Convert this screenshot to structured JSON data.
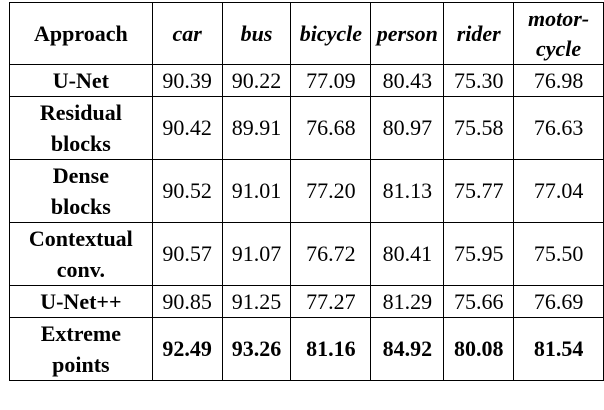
{
  "table": {
    "header": {
      "approach": "Approach",
      "columns": [
        "car",
        "bus",
        "bicycle",
        "person",
        "rider"
      ],
      "last_column_line1": "motor-",
      "last_column_line2": "cycle"
    },
    "rows": [
      {
        "label_line1": "U-Net",
        "label_line2": "",
        "values": [
          "90.39",
          "90.22",
          "77.09",
          "80.43",
          "75.30",
          "76.98"
        ],
        "bold": false
      },
      {
        "label_line1": "Residual",
        "label_line2": "blocks",
        "values": [
          "90.42",
          "89.91",
          "76.68",
          "80.97",
          "75.58",
          "76.63"
        ],
        "bold": false
      },
      {
        "label_line1": "Dense",
        "label_line2": "blocks",
        "values": [
          "90.52",
          "91.01",
          "77.20",
          "81.13",
          "75.77",
          "77.04"
        ],
        "bold": false
      },
      {
        "label_line1": "Contextual",
        "label_line2": "conv.",
        "values": [
          "90.57",
          "91.07",
          "76.72",
          "80.41",
          "75.95",
          "75.50"
        ],
        "bold": false
      },
      {
        "label_line1": "U-Net++",
        "label_line2": "",
        "values": [
          "90.85",
          "91.25",
          "77.27",
          "81.29",
          "75.66",
          "76.69"
        ],
        "bold": false
      },
      {
        "label_line1": "Extreme",
        "label_line2": "points",
        "values": [
          "92.49",
          "93.26",
          "81.16",
          "84.92",
          "80.08",
          "81.54"
        ],
        "bold": true
      }
    ]
  }
}
